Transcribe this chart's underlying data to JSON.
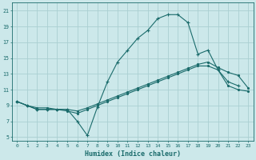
{
  "xlabel": "Humidex (Indice chaleur)",
  "background_color": "#cce8ea",
  "grid_color": "#aacfd2",
  "line_color": "#1a6b6b",
  "xlim": [
    -0.5,
    23.5
  ],
  "ylim": [
    4.5,
    22.0
  ],
  "xticks": [
    0,
    1,
    2,
    3,
    4,
    5,
    6,
    7,
    8,
    9,
    10,
    11,
    12,
    13,
    14,
    15,
    16,
    17,
    18,
    19,
    20,
    21,
    22,
    23
  ],
  "yticks": [
    5,
    7,
    9,
    11,
    13,
    15,
    17,
    19,
    21
  ],
  "line1_x": [
    0,
    1,
    2,
    3,
    4,
    5,
    6,
    7,
    8,
    9,
    10,
    11,
    12,
    13,
    14,
    15,
    16,
    17,
    18,
    19,
    20,
    21,
    22
  ],
  "line1_y": [
    9.5,
    9.0,
    8.5,
    8.5,
    8.5,
    8.5,
    7.0,
    5.2,
    8.8,
    12.0,
    14.5,
    16.0,
    17.5,
    18.5,
    20.0,
    20.5,
    20.5,
    19.5,
    15.5,
    16.0,
    13.5,
    12.0,
    11.5
  ],
  "line2_x": [
    0,
    1,
    2,
    3,
    4,
    5,
    6,
    7,
    8,
    9,
    10,
    11,
    12,
    13,
    14,
    15,
    16,
    17,
    18,
    19,
    20,
    21,
    22,
    23
  ],
  "line2_y": [
    9.5,
    9.0,
    8.7,
    8.7,
    8.5,
    8.5,
    8.3,
    8.7,
    9.2,
    9.7,
    10.2,
    10.7,
    11.2,
    11.7,
    12.2,
    12.7,
    13.2,
    13.7,
    14.2,
    14.5,
    13.8,
    13.2,
    12.8,
    11.2
  ],
  "line3_x": [
    0,
    1,
    2,
    3,
    4,
    5,
    6,
    7,
    8,
    9,
    10,
    11,
    12,
    13,
    14,
    15,
    16,
    17,
    18,
    19,
    20,
    21,
    22,
    23
  ],
  "line3_y": [
    9.5,
    9.0,
    8.5,
    8.5,
    8.5,
    8.3,
    8.0,
    8.5,
    9.0,
    9.5,
    10.0,
    10.5,
    11.0,
    11.5,
    12.0,
    12.5,
    13.0,
    13.5,
    14.0,
    14.0,
    13.5,
    11.5,
    11.0,
    10.8
  ],
  "marker1": "+",
  "marker2": ".",
  "marker3": "."
}
